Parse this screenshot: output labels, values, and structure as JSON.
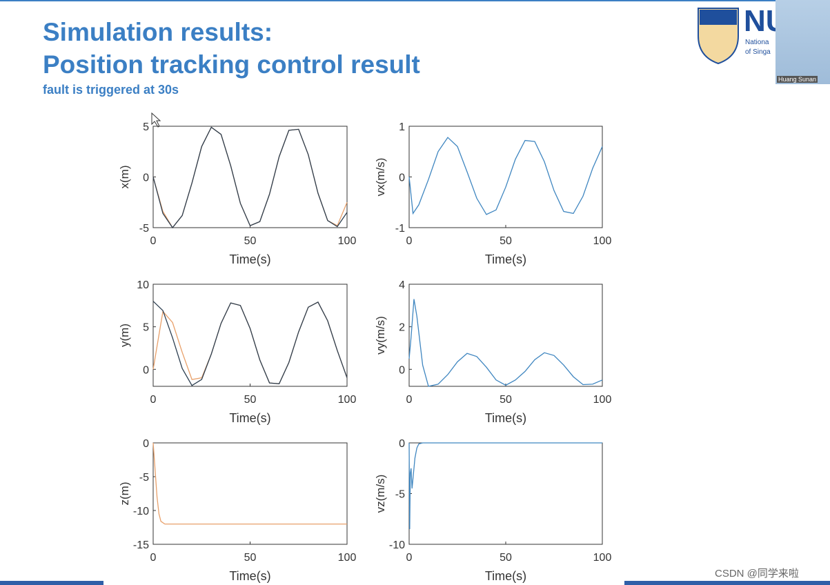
{
  "title": "Simulation results:",
  "subtitle": "Position tracking control result",
  "note": "fault is triggered at 30s",
  "logo": {
    "text": "NU",
    "line1": "Nationa",
    "line2": "of Singa"
  },
  "video_label": "Huang Sunan",
  "watermark": "CSDN @同学来啦",
  "chart_data": [
    {
      "type": "line",
      "ylabel": "x(m)",
      "xlabel": "Time(s)",
      "xlim": [
        0,
        100
      ],
      "xticks": [
        0,
        50,
        100
      ],
      "ylim": [
        -5,
        5
      ],
      "yticks": [
        -5,
        0,
        5
      ],
      "x": [
        0,
        5,
        10,
        15,
        20,
        25,
        30,
        35,
        40,
        45,
        50,
        55,
        60,
        65,
        70,
        75,
        80,
        85,
        90,
        95,
        100
      ],
      "series": [
        {
          "color": "#e8a06a",
          "values": [
            0,
            -3.4,
            -5.0,
            -3.8,
            -0.6,
            3.0,
            4.9,
            4.2,
            1.1,
            -2.6,
            -4.8,
            -4.4,
            -1.7,
            2.0,
            4.6,
            4.7,
            2.2,
            -1.6,
            -4.3,
            -4.8,
            -2.5
          ]
        },
        {
          "color": "#2c3e50",
          "values": [
            0,
            -3.6,
            -5.0,
            -3.8,
            -0.6,
            3.0,
            4.9,
            4.2,
            1.1,
            -2.6,
            -4.8,
            -4.4,
            -1.7,
            2.0,
            4.6,
            4.7,
            2.2,
            -1.6,
            -4.3,
            -4.9,
            -3.5
          ]
        }
      ]
    },
    {
      "type": "line",
      "ylabel": "vx(m/s)",
      "xlabel": "Time(s)",
      "xlim": [
        0,
        100
      ],
      "xticks": [
        0,
        50,
        100
      ],
      "ylim": [
        -1,
        1
      ],
      "yticks": [
        -1,
        0,
        1
      ],
      "x": [
        0,
        2,
        5,
        10,
        15,
        20,
        25,
        30,
        35,
        40,
        45,
        50,
        55,
        60,
        65,
        70,
        75,
        80,
        85,
        90,
        95,
        100
      ],
      "series": [
        {
          "color": "#3f86c0",
          "values": [
            0,
            -0.72,
            -0.55,
            -0.05,
            0.5,
            0.78,
            0.6,
            0.1,
            -0.42,
            -0.74,
            -0.65,
            -0.2,
            0.35,
            0.72,
            0.7,
            0.3,
            -0.27,
            -0.68,
            -0.72,
            -0.38,
            0.17,
            0.6
          ]
        }
      ]
    },
    {
      "type": "line",
      "ylabel": "y(m)",
      "xlabel": "Time(s)",
      "xlim": [
        0,
        100
      ],
      "xticks": [
        0,
        50,
        100
      ],
      "ylim": [
        -2,
        10
      ],
      "yticks": [
        0,
        5,
        10
      ],
      "x": [
        0,
        5,
        10,
        15,
        20,
        25,
        30,
        35,
        40,
        45,
        50,
        55,
        60,
        65,
        70,
        75,
        80,
        85,
        90,
        95,
        100
      ],
      "series": [
        {
          "color": "#e8a06a",
          "values": [
            0,
            6.8,
            5.5,
            2.0,
            -1.2,
            -1.0,
            1.8,
            5.4,
            7.8,
            7.5,
            4.8,
            1.1,
            -1.6,
            -1.7,
            0.8,
            4.4,
            7.3,
            7.9,
            5.7,
            2.2,
            -1.0
          ]
        },
        {
          "color": "#2c3e50",
          "values": [
            8.0,
            6.9,
            3.7,
            0.1,
            -1.9,
            -1.2,
            1.8,
            5.4,
            7.8,
            7.5,
            4.8,
            1.1,
            -1.6,
            -1.7,
            0.8,
            4.4,
            7.3,
            7.9,
            5.7,
            2.2,
            -1.0
          ]
        }
      ]
    },
    {
      "type": "line",
      "ylabel": "vy(m/s)",
      "xlabel": "Time(s)",
      "xlim": [
        0,
        100
      ],
      "xticks": [
        0,
        50,
        100
      ],
      "ylim": [
        -0.8,
        4
      ],
      "yticks": [
        0,
        2,
        4
      ],
      "x": [
        0,
        1,
        2.5,
        4,
        7,
        10,
        15,
        20,
        25,
        30,
        35,
        40,
        45,
        50,
        55,
        60,
        65,
        70,
        75,
        80,
        85,
        90,
        95,
        100
      ],
      "series": [
        {
          "color": "#3f86c0",
          "values": [
            0.5,
            1.5,
            3.3,
            2.5,
            0.2,
            -0.8,
            -0.7,
            -0.25,
            0.35,
            0.75,
            0.6,
            0.1,
            -0.5,
            -0.75,
            -0.5,
            -0.1,
            0.45,
            0.78,
            0.65,
            0.2,
            -0.35,
            -0.72,
            -0.7,
            -0.5
          ]
        }
      ]
    },
    {
      "type": "line",
      "ylabel": "z(m)",
      "xlabel": "Time(s)",
      "xlim": [
        0,
        100
      ],
      "xticks": [
        0,
        50,
        100
      ],
      "ylim": [
        -15,
        0
      ],
      "yticks": [
        -15,
        -10,
        -5,
        0
      ],
      "x": [
        0,
        1,
        2,
        3,
        4,
        6,
        10,
        35,
        100
      ],
      "series": [
        {
          "color": "#e8a06a",
          "values": [
            0,
            -4,
            -8,
            -10.5,
            -11.6,
            -12,
            -12,
            -12,
            -12
          ]
        }
      ]
    },
    {
      "type": "line",
      "ylabel": "vz(m/s)",
      "xlabel": "Time(s)",
      "xlim": [
        0,
        100
      ],
      "xticks": [
        0,
        50,
        100
      ],
      "ylim": [
        -10,
        0
      ],
      "yticks": [
        -10,
        -5,
        0
      ],
      "x": [
        0,
        0.3,
        0.6,
        1,
        1.5,
        2,
        3,
        4,
        5,
        7,
        100
      ],
      "series": [
        {
          "color": "#3f86c0",
          "values": [
            0,
            -8.5,
            -3,
            -2.5,
            -4.5,
            -3.5,
            -1.5,
            -0.5,
            -0.1,
            0,
            0
          ]
        }
      ]
    }
  ]
}
